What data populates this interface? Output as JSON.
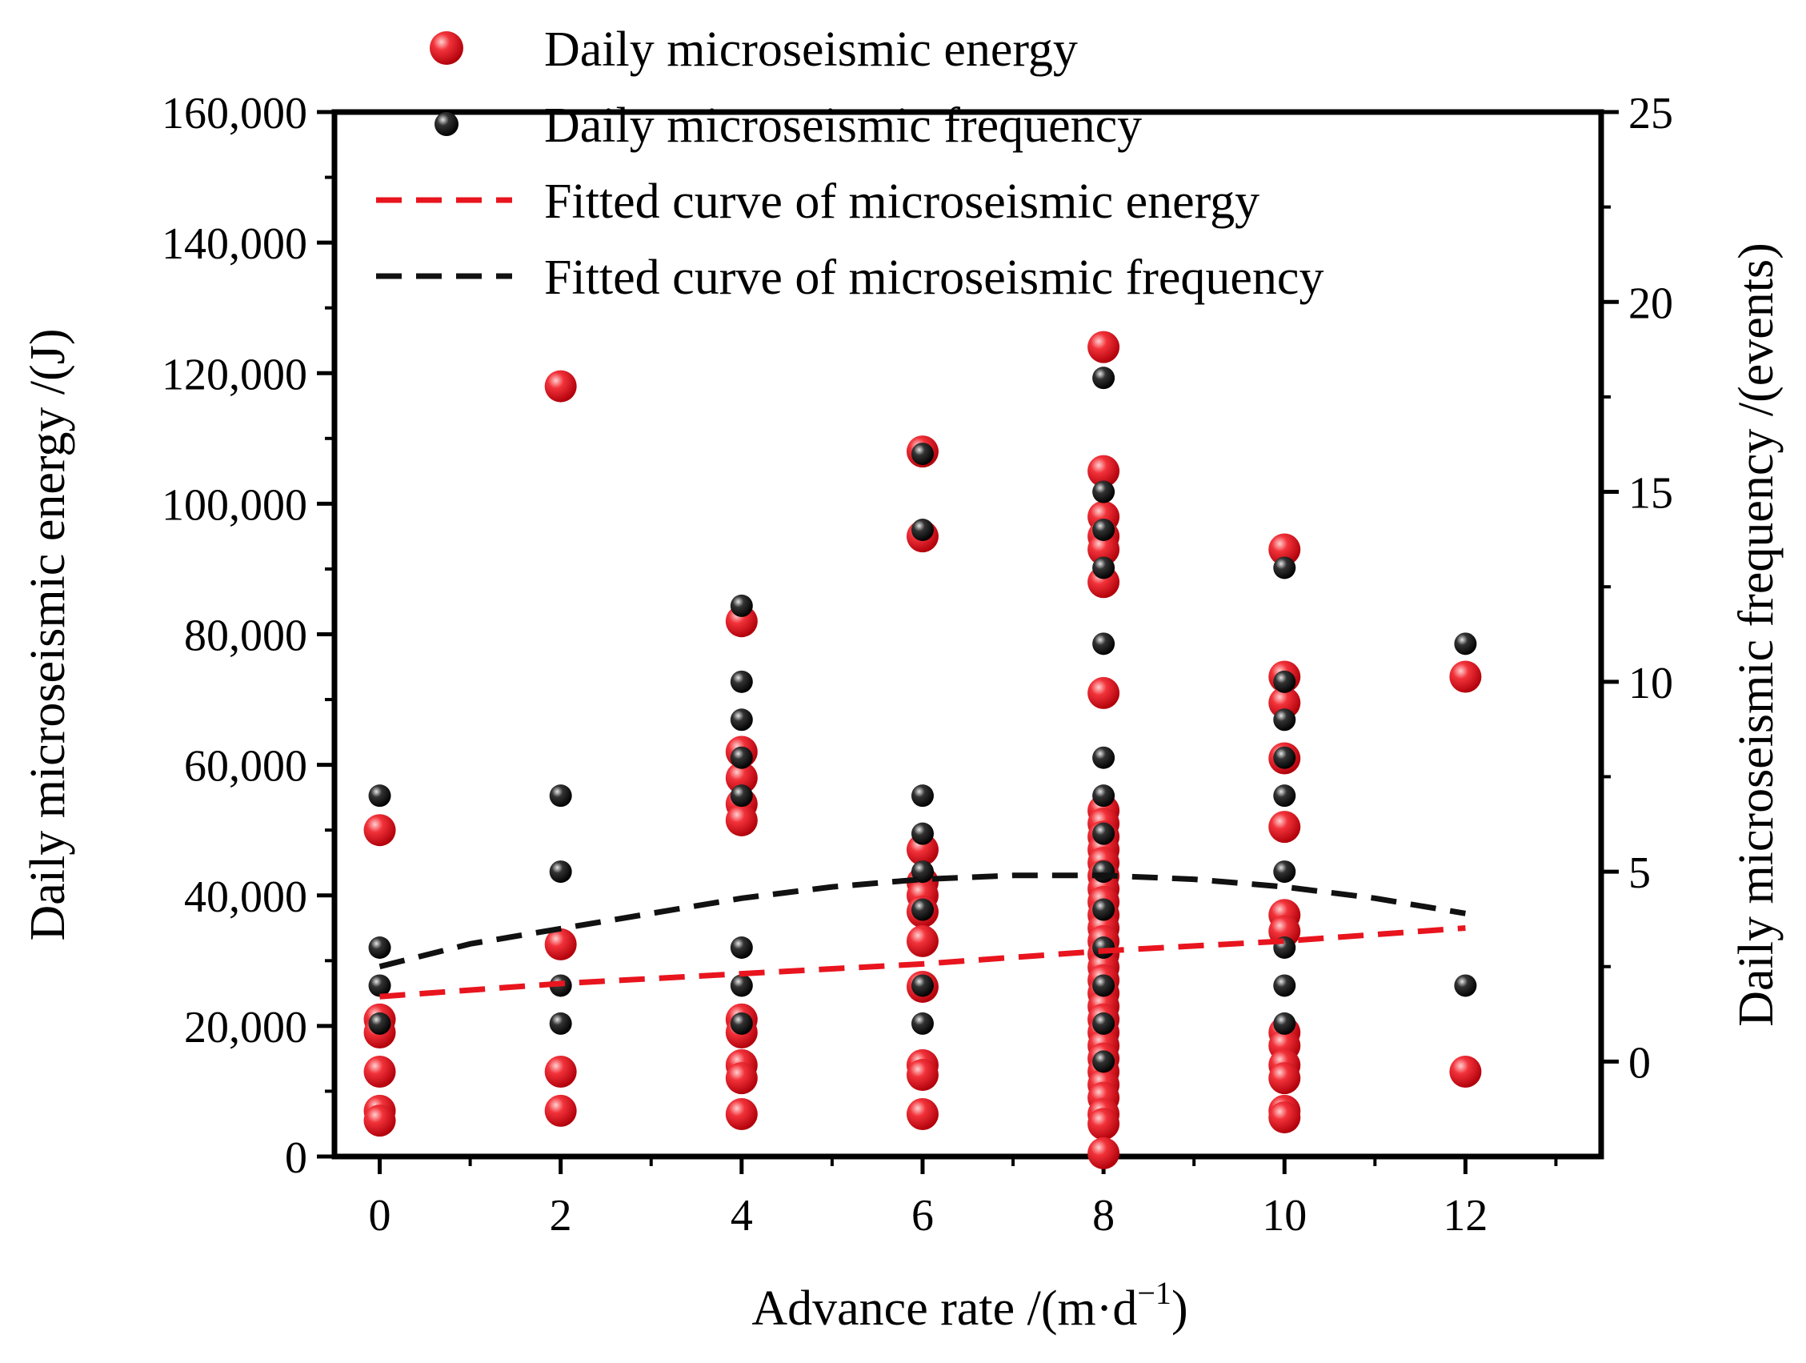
{
  "chart_data": {
    "type": "scatter",
    "xlabel": "Advance rate /(m·d",
    "xlabel_sup": "−1",
    "xlabel_end": ")",
    "ylabel_left": "Daily microseismic energy /(J)",
    "ylabel_right": "Daily microseismic frequency /(events)",
    "xlim": [
      -0.5,
      13.5
    ],
    "ylim_left": [
      0,
      160000
    ],
    "ylim_right": [
      -2.5,
      25
    ],
    "x_ticks": [
      0,
      2,
      4,
      6,
      8,
      10,
      12
    ],
    "x_tick_labels": [
      "0",
      "2",
      "4",
      "6",
      "8",
      "10",
      "12"
    ],
    "y_left_ticks": [
      0,
      20000,
      40000,
      60000,
      80000,
      100000,
      120000,
      140000,
      160000
    ],
    "y_left_tick_labels": [
      "0",
      "20,000",
      "40,000",
      "60,000",
      "80,000",
      "100,000",
      "120,000",
      "140,000",
      "160,000"
    ],
    "y_right_ticks": [
      0,
      5,
      10,
      15,
      20,
      25
    ],
    "y_right_tick_labels": [
      "0",
      "5",
      "10",
      "15",
      "20",
      "25"
    ],
    "legend": [
      {
        "label": "Daily microseismic energy",
        "kind": "marker",
        "color": "#e8141e"
      },
      {
        "label": "Daily microseismic frequency",
        "kind": "marker",
        "color": "#111111"
      },
      {
        "label": "Fitted curve of microseismic energy",
        "kind": "dash",
        "color": "#e8141e"
      },
      {
        "label": "Fitted curve of microseismic frequency",
        "kind": "dash",
        "color": "#111111"
      }
    ],
    "series": [
      {
        "name": "Daily microseismic energy",
        "axis": "left",
        "color": "#e8141e",
        "points": [
          [
            0,
            50000
          ],
          [
            0,
            21000
          ],
          [
            0,
            19000
          ],
          [
            0,
            13000
          ],
          [
            0,
            7000
          ],
          [
            0,
            5500
          ],
          [
            2,
            118000
          ],
          [
            2,
            32500
          ],
          [
            2,
            13000
          ],
          [
            2,
            7000
          ],
          [
            4,
            82000
          ],
          [
            4,
            62000
          ],
          [
            4,
            58000
          ],
          [
            4,
            54000
          ],
          [
            4,
            51500
          ],
          [
            4,
            21000
          ],
          [
            4,
            19000
          ],
          [
            4,
            14000
          ],
          [
            4,
            12000
          ],
          [
            4,
            6500
          ],
          [
            6,
            108000
          ],
          [
            6,
            95000
          ],
          [
            6,
            47000
          ],
          [
            6,
            42000
          ],
          [
            6,
            40000
          ],
          [
            6,
            37500
          ],
          [
            6,
            33000
          ],
          [
            6,
            26000
          ],
          [
            6,
            14000
          ],
          [
            6,
            12500
          ],
          [
            6,
            6500
          ],
          [
            8,
            124000
          ],
          [
            8,
            105000
          ],
          [
            8,
            98000
          ],
          [
            8,
            95000
          ],
          [
            8,
            93000
          ],
          [
            8,
            88000
          ],
          [
            8,
            71000
          ],
          [
            8,
            53000
          ],
          [
            8,
            51000
          ],
          [
            8,
            49000
          ],
          [
            8,
            47000
          ],
          [
            8,
            45000
          ],
          [
            8,
            43000
          ],
          [
            8,
            41000
          ],
          [
            8,
            39000
          ],
          [
            8,
            37000
          ],
          [
            8,
            35000
          ],
          [
            8,
            33000
          ],
          [
            8,
            31000
          ],
          [
            8,
            29000
          ],
          [
            8,
            27000
          ],
          [
            8,
            25000
          ],
          [
            8,
            23000
          ],
          [
            8,
            21000
          ],
          [
            8,
            19000
          ],
          [
            8,
            17000
          ],
          [
            8,
            15000
          ],
          [
            8,
            13000
          ],
          [
            8,
            11000
          ],
          [
            8,
            9000
          ],
          [
            8,
            6500
          ],
          [
            8,
            5000
          ],
          [
            8,
            500
          ],
          [
            10,
            93000
          ],
          [
            10,
            73500
          ],
          [
            10,
            69500
          ],
          [
            10,
            61000
          ],
          [
            10,
            50500
          ],
          [
            10,
            37000
          ],
          [
            10,
            34500
          ],
          [
            10,
            19000
          ],
          [
            10,
            17000
          ],
          [
            10,
            14000
          ],
          [
            10,
            12000
          ],
          [
            10,
            7000
          ],
          [
            10,
            6000
          ],
          [
            12,
            73500
          ],
          [
            12,
            13000
          ]
        ]
      },
      {
        "name": "Daily microseismic frequency",
        "axis": "right",
        "color": "#111111",
        "points": [
          [
            0,
            7
          ],
          [
            0,
            3
          ],
          [
            0,
            2
          ],
          [
            0,
            1
          ],
          [
            2,
            7
          ],
          [
            2,
            5
          ],
          [
            2,
            2
          ],
          [
            2,
            1
          ],
          [
            4,
            12
          ],
          [
            4,
            10
          ],
          [
            4,
            9
          ],
          [
            4,
            8
          ],
          [
            4,
            7
          ],
          [
            4,
            3
          ],
          [
            4,
            2
          ],
          [
            4,
            1
          ],
          [
            6,
            16
          ],
          [
            6,
            14
          ],
          [
            6,
            7
          ],
          [
            6,
            6
          ],
          [
            6,
            5
          ],
          [
            6,
            4
          ],
          [
            6,
            2
          ],
          [
            6,
            1
          ],
          [
            8,
            18
          ],
          [
            8,
            15
          ],
          [
            8,
            14
          ],
          [
            8,
            13
          ],
          [
            8,
            11
          ],
          [
            8,
            8
          ],
          [
            8,
            7
          ],
          [
            8,
            6
          ],
          [
            8,
            5
          ],
          [
            8,
            4
          ],
          [
            8,
            3
          ],
          [
            8,
            2
          ],
          [
            8,
            1
          ],
          [
            8,
            0
          ],
          [
            10,
            13
          ],
          [
            10,
            10
          ],
          [
            10,
            9
          ],
          [
            10,
            8
          ],
          [
            10,
            7
          ],
          [
            10,
            5
          ],
          [
            10,
            3
          ],
          [
            10,
            2
          ],
          [
            10,
            1
          ],
          [
            12,
            11
          ],
          [
            12,
            2
          ]
        ]
      }
    ],
    "fits": [
      {
        "name": "Fitted curve of microseismic energy",
        "axis": "left",
        "color": "#e8141e",
        "points": [
          [
            0,
            24500
          ],
          [
            2,
            26500
          ],
          [
            4,
            28000
          ],
          [
            6,
            29500
          ],
          [
            8,
            31500
          ],
          [
            10,
            33000
          ],
          [
            12,
            35000
          ]
        ]
      },
      {
        "name": "Fitted curve of microseismic frequency",
        "axis": "right",
        "color": "#111111",
        "points": [
          [
            0,
            2.5
          ],
          [
            1,
            3.1
          ],
          [
            2,
            3.5
          ],
          [
            3,
            3.9
          ],
          [
            4,
            4.3
          ],
          [
            5,
            4.6
          ],
          [
            6,
            4.8
          ],
          [
            7,
            4.9
          ],
          [
            8,
            4.9
          ],
          [
            9,
            4.8
          ],
          [
            10,
            4.6
          ],
          [
            11,
            4.3
          ],
          [
            12,
            3.9
          ]
        ]
      }
    ]
  }
}
